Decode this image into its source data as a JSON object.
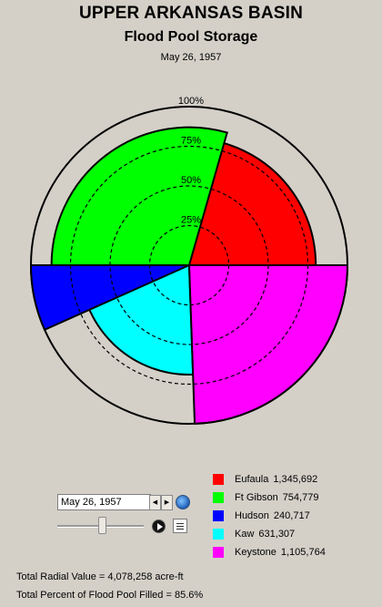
{
  "header": {
    "title": "UPPER ARKANSAS BASIN",
    "subtitle": "Flood Pool Storage",
    "date": "May 26, 1957"
  },
  "chart_data": {
    "type": "polar-area",
    "title": "UPPER ARKANSAS BASIN",
    "subtitle": "Flood Pool Storage",
    "date": "May 26, 1957",
    "radial_axis": {
      "ticks": [
        "25%",
        "50%",
        "75%",
        "100%"
      ],
      "range": [
        0,
        100
      ]
    },
    "series": [
      {
        "name": "Eufaula",
        "value": 1345692,
        "percent_full": 80,
        "start_deg": 0,
        "end_deg": 110,
        "color": "#ff0000"
      },
      {
        "name": "Keystone",
        "value": 1105764,
        "percent_full": 100,
        "start_deg": 90,
        "end_deg": 178,
        "color": "#ff00ff"
      },
      {
        "name": "Kaw",
        "value": 631307,
        "percent_full": 69,
        "start_deg": 178,
        "end_deg": 270,
        "color": "#00ffff"
      },
      {
        "name": "Hudson",
        "value": 240717,
        "percent_full": 100,
        "start_deg": 246,
        "end_deg": 270,
        "color": "#0000ff"
      },
      {
        "name": "Ft Gibson",
        "value": 754779,
        "percent_full": 87,
        "start_deg": 270,
        "end_deg": 376,
        "color": "#00ff00"
      }
    ]
  },
  "legend": [
    {
      "name": "Eufaula",
      "value": "1,345,692",
      "color": "#ff0000"
    },
    {
      "name": "Ft Gibson",
      "value": "754,779",
      "color": "#00ff00"
    },
    {
      "name": "Hudson",
      "value": "240,717",
      "color": "#0000ff"
    },
    {
      "name": "Kaw",
      "value": "631,307",
      "color": "#00ffff"
    },
    {
      "name": "Keystone",
      "value": "1,105,764",
      "color": "#ff00ff"
    }
  ],
  "controls": {
    "date_value": "May 26, 1957",
    "prev_icon": "triangle-left-icon",
    "next_icon": "triangle-right-icon",
    "globe_icon": "globe-icon",
    "play_icon": "play-icon",
    "notes_icon": "notes-icon"
  },
  "footer": {
    "total_radial": "Total Radial Value =  4,078,258 acre-ft",
    "total_percent": "Total Percent of Flood Pool Filled =  85.6%"
  }
}
